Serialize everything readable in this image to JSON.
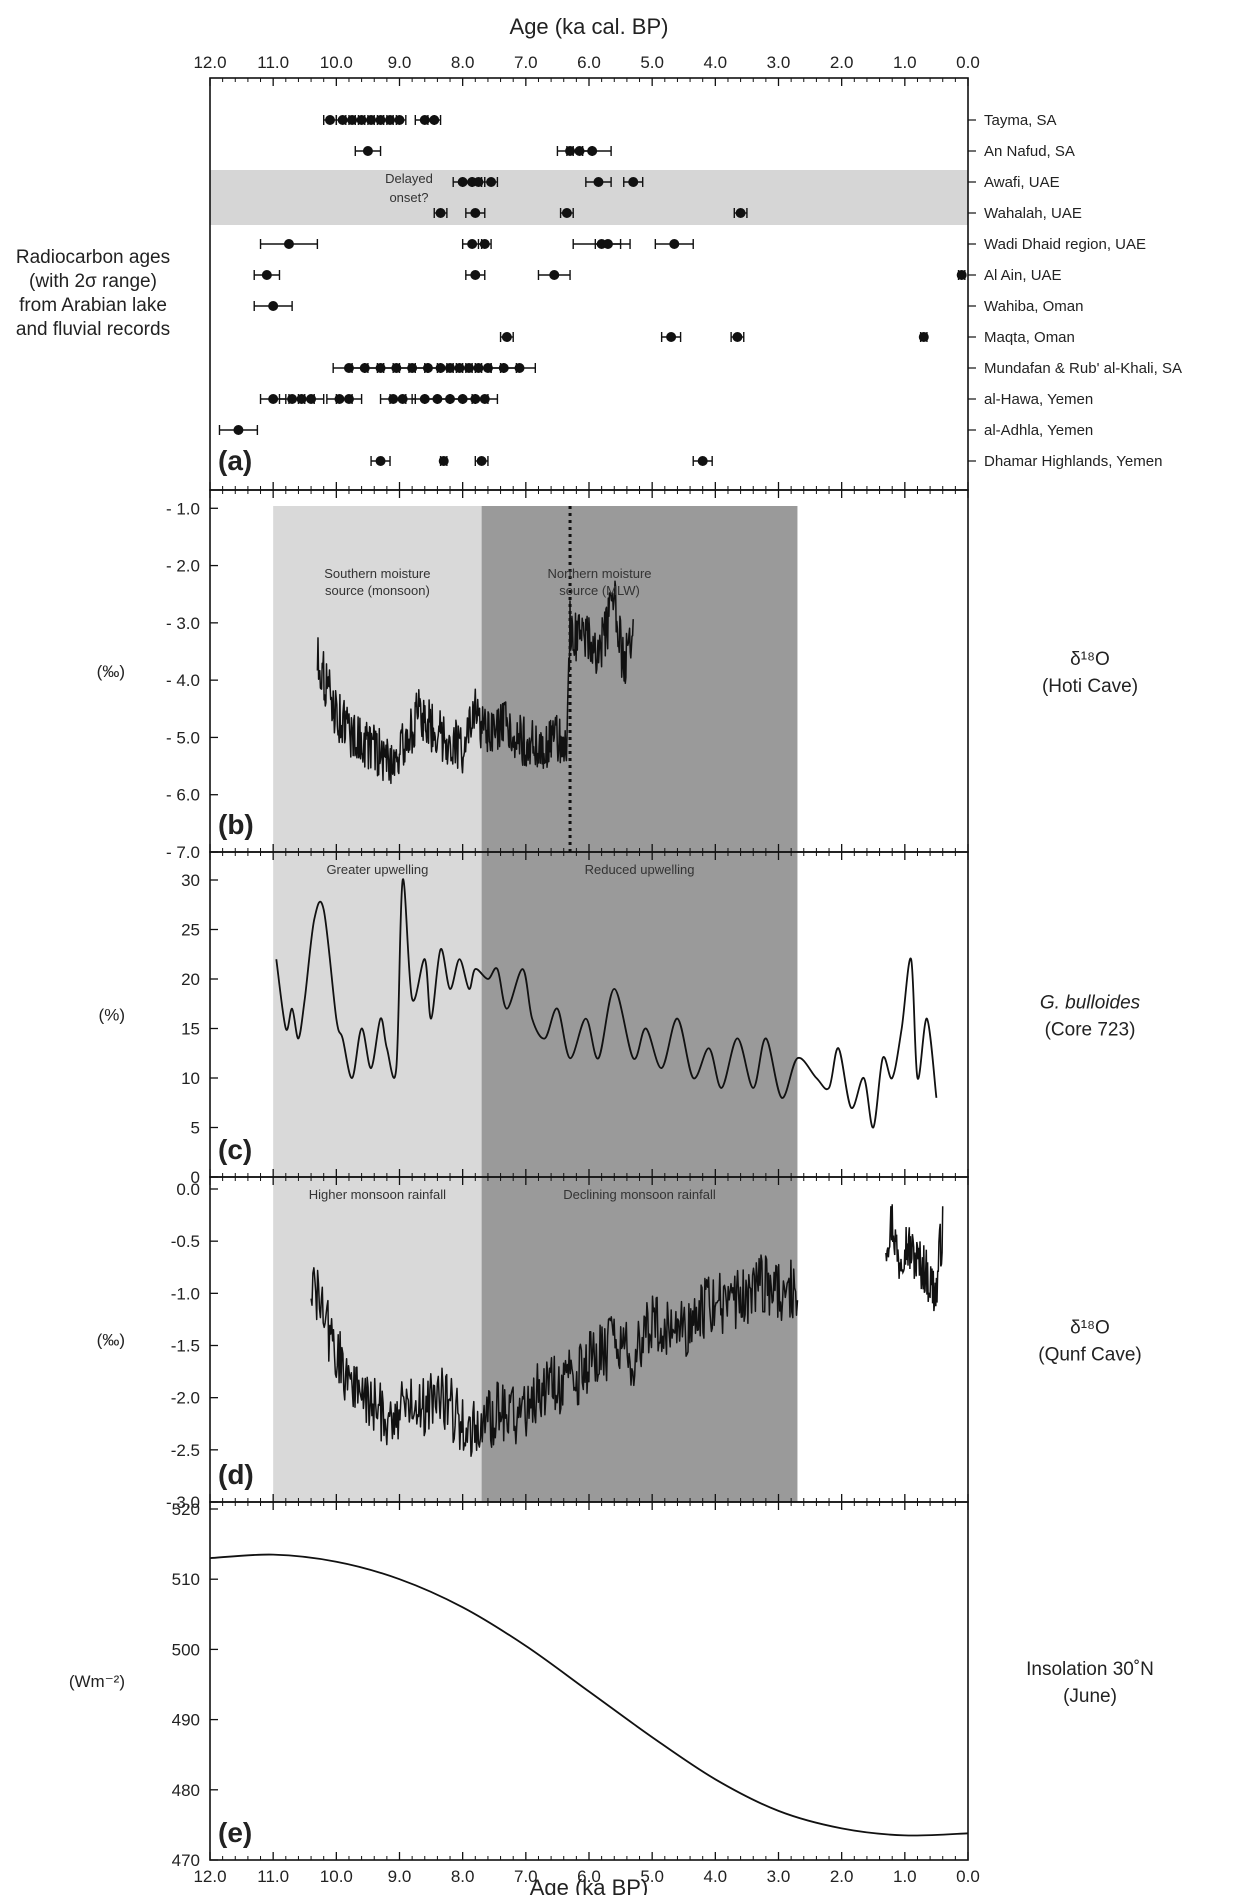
{
  "chart_data": [
    {
      "panel": "(a)",
      "type": "scatter",
      "title": "Age (ka cal. BP)",
      "side_note": [
        "Radiocarbon ages",
        "(with 2σ range)",
        "from Arabian lake",
        "and fluvial records"
      ],
      "xlim": [
        12.0,
        0.0
      ],
      "x_ticks": [
        "12.0",
        "11.0",
        "10.0",
        "9.0",
        "8.0",
        "7.0",
        "6.0",
        "5.0",
        "4.0",
        "3.0",
        "2.0",
        "1.0",
        "0.0"
      ],
      "band_label": [
        "Delayed",
        "onset?"
      ],
      "band_sites": [
        "Awafi, UAE",
        "Wahalah, UAE"
      ],
      "sites": [
        {
          "name": "Tayma, SA",
          "ages": [
            10.1,
            9.9,
            9.75,
            9.6,
            9.45,
            9.3,
            9.15,
            9.0,
            8.6,
            8.45
          ],
          "err": [
            0.1,
            0.1,
            0.1,
            0.1,
            0.1,
            0.1,
            0.1,
            0.1,
            0.15,
            0.1
          ]
        },
        {
          "name": "An Nafud, SA",
          "ages": [
            9.5,
            6.3,
            6.15,
            5.95
          ],
          "err": [
            0.2,
            0.2,
            0.2,
            0.3
          ]
        },
        {
          "name": "Awafi, UAE",
          "ages": [
            8.0,
            7.85,
            7.75,
            7.55,
            5.85,
            5.3
          ],
          "err": [
            0.15,
            0.15,
            0.1,
            0.1,
            0.2,
            0.15
          ]
        },
        {
          "name": "Wahalah, UAE",
          "ages": [
            8.35,
            7.8,
            6.35,
            3.6
          ],
          "err": [
            0.1,
            0.15,
            0.1,
            0.1
          ]
        },
        {
          "name": "Wadi Dhaid region, UAE",
          "ages": [
            10.75,
            7.85,
            7.65,
            5.8,
            5.7,
            4.65
          ],
          "err": [
            0.45,
            0.15,
            0.1,
            0.45,
            0.2,
            0.3
          ]
        },
        {
          "name": "Al Ain, UAE",
          "ages": [
            11.1,
            7.8,
            6.55,
            0.1
          ],
          "err": [
            0.2,
            0.15,
            0.25,
            0.05
          ]
        },
        {
          "name": "Wahiba, Oman",
          "ages": [
            11.0
          ],
          "err": [
            0.3
          ]
        },
        {
          "name": "Maqta, Oman",
          "ages": [
            7.3,
            4.7,
            3.65,
            0.7
          ],
          "err": [
            0.1,
            0.15,
            0.1,
            0.05
          ]
        },
        {
          "name": "Mundafan & Rub' al-Khali, SA",
          "ages": [
            9.8,
            9.55,
            9.3,
            9.05,
            8.8,
            8.55,
            8.35,
            8.2,
            8.05,
            7.9,
            7.75,
            7.6,
            7.35,
            7.1
          ],
          "err": [
            0.25,
            0.2,
            0.2,
            0.2,
            0.2,
            0.2,
            0.2,
            0.2,
            0.2,
            0.2,
            0.2,
            0.2,
            0.2,
            0.25
          ]
        },
        {
          "name": "al-Hawa, Yemen",
          "ages": [
            11.0,
            10.7,
            10.55,
            10.4,
            9.95,
            9.8,
            9.1,
            8.95,
            8.6,
            8.4,
            8.2,
            8.0,
            7.8,
            7.65
          ],
          "err": [
            0.2,
            0.2,
            0.2,
            0.2,
            0.2,
            0.2,
            0.2,
            0.2,
            0.2,
            0.2,
            0.2,
            0.2,
            0.2,
            0.2
          ]
        },
        {
          "name": "al-Adhla, Yemen",
          "ages": [
            11.55
          ],
          "err": [
            0.3
          ]
        },
        {
          "name": "Dhamar Highlands, Yemen",
          "ages": [
            9.3,
            8.3,
            7.7,
            4.2
          ],
          "err": [
            0.15,
            0.05,
            0.1,
            0.15
          ]
        }
      ]
    },
    {
      "panel": "(b)",
      "type": "line",
      "ylabel": "(‰)",
      "right_label": [
        "δ¹⁸O",
        "(Hoti Cave)"
      ],
      "ylim": [
        -7.0,
        0.0
      ],
      "y_ticks": [
        "- 1.0",
        "- 2.0",
        "- 3.0",
        "- 4.0",
        "- 5.0",
        "- 6.0",
        "- 7.0"
      ],
      "zones": [
        {
          "label": [
            "Southern moisture",
            "source (monsoon)"
          ],
          "from": 11.0,
          "to": 7.7,
          "shade": "light"
        },
        {
          "label": [
            "Northern moisture",
            "source (MLW)"
          ],
          "from": 7.7,
          "to": 2.7,
          "shade": "dark"
        }
      ],
      "dotted_line_x": 6.3,
      "x": [
        10.3,
        10.0,
        9.7,
        9.4,
        9.2,
        9.0,
        8.7,
        8.5,
        8.3,
        8.0,
        7.8,
        7.6,
        7.3,
        7.0,
        6.7,
        6.5,
        6.35,
        6.3,
        6.2,
        6.0,
        5.85,
        5.6,
        5.45,
        5.3
      ],
      "y": [
        -3.6,
        -4.6,
        -5.0,
        -5.2,
        -5.4,
        -5.3,
        -4.6,
        -4.8,
        -5.0,
        -5.2,
        -4.6,
        -5.0,
        -4.8,
        -5.1,
        -5.2,
        -5.0,
        -5.2,
        -3.0,
        -3.3,
        -3.2,
        -3.6,
        -2.6,
        -3.8,
        -3.1
      ],
      "noise": 0.45
    },
    {
      "panel": "(c)",
      "type": "line",
      "ylabel": "(%)",
      "right_label": [
        "G. bulloides",
        "(Core 723)"
      ],
      "ylim": [
        0,
        30
      ],
      "y_ticks": [
        "30",
        "25",
        "20",
        "15",
        "10",
        "5",
        "0"
      ],
      "zones": [
        {
          "label": [
            "Greater upwelling"
          ],
          "from": 11.0,
          "to": 7.7,
          "shade": "light"
        },
        {
          "label": [
            "Reduced upwelling"
          ],
          "from": 7.7,
          "to": 2.7,
          "shade": "dark"
        }
      ],
      "x": [
        10.95,
        10.8,
        10.7,
        10.6,
        10.5,
        10.35,
        10.2,
        10.0,
        9.9,
        9.75,
        9.6,
        9.45,
        9.3,
        9.2,
        9.05,
        8.95,
        8.8,
        8.6,
        8.5,
        8.35,
        8.2,
        8.05,
        7.9,
        7.8,
        7.6,
        7.45,
        7.3,
        7.05,
        6.9,
        6.7,
        6.5,
        6.3,
        6.05,
        5.85,
        5.6,
        5.3,
        5.1,
        4.85,
        4.6,
        4.35,
        4.1,
        3.9,
        3.65,
        3.4,
        3.2,
        2.95,
        2.7,
        2.4,
        2.2,
        2.05,
        1.85,
        1.65,
        1.5,
        1.35,
        1.2,
        1.05,
        0.9,
        0.8,
        0.65,
        0.5
      ],
      "y": [
        22,
        15,
        17,
        14,
        18,
        26,
        27,
        16,
        14,
        10,
        15,
        11,
        16,
        13,
        11,
        30,
        18,
        22,
        16,
        23,
        19,
        22,
        19,
        21,
        20,
        21,
        17,
        21,
        16,
        14,
        17,
        12,
        16,
        12,
        19,
        12,
        15,
        11,
        16,
        10,
        13,
        9,
        14,
        9,
        14,
        8,
        12,
        10,
        9,
        13,
        7,
        10,
        5,
        12,
        10,
        15,
        22,
        10,
        16,
        8
      ],
      "noise": 0
    },
    {
      "panel": "(d)",
      "type": "line",
      "ylabel": "(‰)",
      "right_label": [
        "δ¹⁸O",
        "(Qunf Cave)"
      ],
      "ylim": [
        -3.0,
        0.0
      ],
      "y_ticks": [
        "0.0",
        "-0.5",
        "-1.0",
        "-1.5",
        "-2.0",
        "-2.5",
        "- 3.0"
      ],
      "zones": [
        {
          "label": [
            "Higher monsoon rainfall"
          ],
          "from": 11.0,
          "to": 7.7,
          "shade": "light"
        },
        {
          "label": [
            "Declining monsoon rainfall"
          ],
          "from": 7.7,
          "to": 2.7,
          "shade": "dark"
        }
      ],
      "x": [
        10.4,
        10.2,
        10.0,
        9.7,
        9.4,
        9.1,
        8.8,
        8.6,
        8.4,
        8.2,
        7.9,
        7.7,
        7.4,
        7.1,
        6.8,
        6.5,
        6.2,
        5.9,
        5.6,
        5.3,
        5.0,
        4.7,
        4.4,
        4.1,
        3.8,
        3.5,
        3.2,
        2.9,
        2.7
      ],
      "y": [
        -0.9,
        -1.2,
        -1.6,
        -1.9,
        -2.1,
        -2.2,
        -2.0,
        -2.1,
        -1.9,
        -2.1,
        -2.3,
        -2.3,
        -2.1,
        -2.2,
        -1.9,
        -1.9,
        -1.8,
        -1.6,
        -1.5,
        -1.6,
        -1.3,
        -1.4,
        -1.3,
        -1.1,
        -1.1,
        -1.0,
        -0.9,
        -1.0,
        -0.95
      ],
      "noise": 0.3,
      "segment2": {
        "x": [
          1.3,
          1.2,
          1.1,
          1.0,
          0.9,
          0.8,
          0.7,
          0.6,
          0.5,
          0.45,
          0.4
        ],
        "y": [
          -0.5,
          -0.3,
          -0.7,
          -0.5,
          -0.6,
          -0.7,
          -0.75,
          -0.9,
          -1.0,
          -0.6,
          -0.4
        ],
        "noise": 0.25
      }
    },
    {
      "panel": "(e)",
      "type": "line",
      "ylabel": "(Wm⁻²)",
      "right_label": [
        "Insolation 30˚N",
        "(June)"
      ],
      "ylim": [
        470,
        520
      ],
      "y_ticks": [
        "520",
        "510",
        "500",
        "490",
        "480",
        "470"
      ],
      "x": [
        12.0,
        11.0,
        10.0,
        9.0,
        8.0,
        7.0,
        6.0,
        5.0,
        4.0,
        3.0,
        2.0,
        1.0,
        0.0
      ],
      "y": [
        513.0,
        513.5,
        512.5,
        510.0,
        506.0,
        500.5,
        494.0,
        487.5,
        481.5,
        477.0,
        474.5,
        473.5,
        473.8
      ],
      "xlabel": "Age (ka BP)",
      "x_ticks": [
        "12.0",
        "11.0",
        "10.0",
        "9.0",
        "8.0",
        "7.0",
        "6.0",
        "5.0",
        "4.0",
        "3.0",
        "2.0",
        "1.0",
        "0.0"
      ]
    }
  ],
  "colors": {
    "zone_light": "#d9d9d9",
    "zone_dark": "#9a9a9a",
    "band": "#d6d6d6",
    "line": "#111111"
  }
}
